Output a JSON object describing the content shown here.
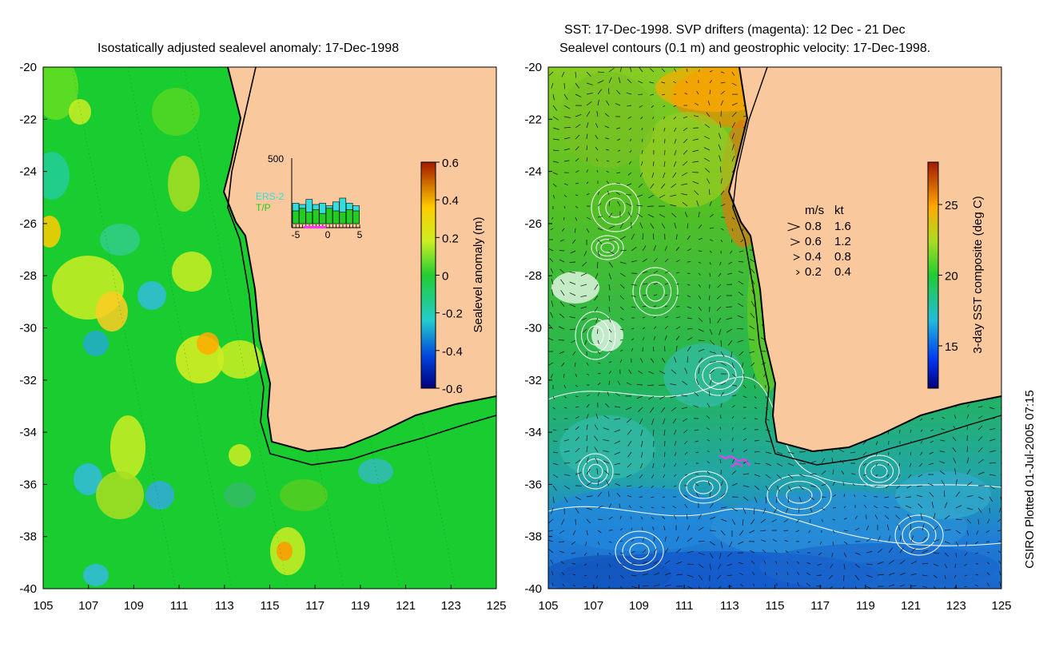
{
  "left_panel": {
    "title": "Isostatically adjusted sealevel anomaly: 17-Dec-1998",
    "colorbar": {
      "label": "Sealevel anomaly (m)",
      "ticks": [
        "0.6",
        "0.4",
        "0.2",
        "0",
        "-0.2",
        "-0.4",
        "-0.6"
      ],
      "range": [
        -0.6,
        0.6
      ]
    },
    "inset": {
      "y_max_label": "500",
      "x_ticks": [
        "-5",
        "0",
        "5"
      ],
      "series": [
        {
          "name": "ERS-2",
          "color": "#33dddd",
          "values": [
            160,
            150,
            190,
            150,
            160,
            140,
            170,
            200,
            160,
            140
          ]
        },
        {
          "name": "T/P",
          "color": "#22cc22",
          "values": [
            100,
            120,
            90,
            110,
            80,
            120,
            100,
            90,
            110,
            100
          ]
        }
      ]
    }
  },
  "right_panel": {
    "title_line1": "SST: 17-Dec-1998. SVP drifters (magenta): 12 Dec - 21 Dec",
    "title_line2": "Sealevel contours (0.1 m) and geostrophic velocity: 17-Dec-1998.",
    "colorbar": {
      "label": "3-day SST composite (deg C)",
      "ticks": [
        "25",
        "20",
        "15"
      ],
      "range": [
        12,
        28
      ]
    },
    "velocity_legend": {
      "header_ms": "m/s",
      "header_kt": "kt",
      "rows": [
        {
          "ms": "0.8",
          "kt": "1.6"
        },
        {
          "ms": "0.6",
          "kt": "1.2"
        },
        {
          "ms": "0.4",
          "kt": "0.8"
        },
        {
          "ms": "0.2",
          "kt": "0.4"
        }
      ]
    }
  },
  "axes": {
    "lon_ticks": [
      "105",
      "107",
      "109",
      "111",
      "113",
      "115",
      "117",
      "119",
      "121",
      "123",
      "125"
    ],
    "lat_ticks": [
      "-20",
      "-22",
      "-24",
      "-26",
      "-28",
      "-30",
      "-32",
      "-34",
      "-36",
      "-38",
      "-40"
    ],
    "lon_range": [
      105,
      125
    ],
    "lat_range": [
      -40,
      -20
    ]
  },
  "credit": "CSIRO Plotted 01-Jul-2005 07:15",
  "colors": {
    "land": "#f9c89d",
    "coastline": "#000000",
    "sla_background": "#19cc30",
    "sst_background": "#22c033",
    "contour": "#ffffff",
    "drifter": "#ff33ff"
  }
}
